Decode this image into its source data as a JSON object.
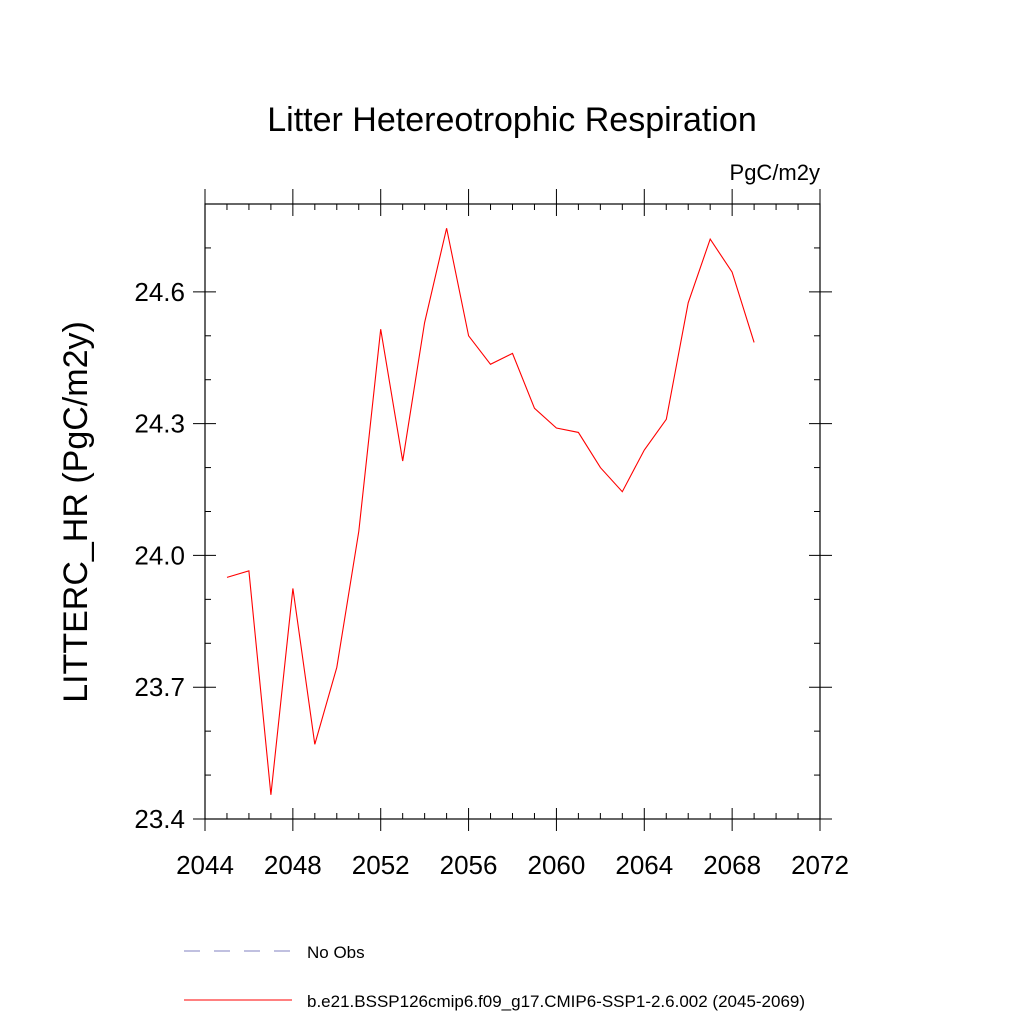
{
  "chart_data": {
    "type": "line",
    "title": "Litter Hetereotrophic Respiration",
    "units_label": "PgC/m2y",
    "ylabel": "LITTERC_HR  (PgC/m2y)",
    "xlabel": "",
    "xlim": [
      2044,
      2072
    ],
    "ylim": [
      23.4,
      24.8
    ],
    "x_ticks": [
      2044,
      2048,
      2052,
      2056,
      2060,
      2064,
      2068,
      2072
    ],
    "x_tick_labels": [
      "2044",
      "2048",
      "2052",
      "2056",
      "2060",
      "2064",
      "2068",
      "2072"
    ],
    "y_ticks": [
      23.4,
      23.7,
      24.0,
      24.3,
      24.6
    ],
    "y_tick_labels": [
      "23.4",
      "23.7",
      "24.0",
      "24.3",
      "24.6"
    ],
    "grid": false,
    "legend_position": "bottom",
    "series": [
      {
        "name": "b.e21.BSSP126cmip6.f09_g17.CMIP6-SSP1-2.6.002 (2045-2069)",
        "color": "#ff0000",
        "dash": "solid",
        "x": [
          2045,
          2046,
          2047,
          2048,
          2049,
          2050,
          2051,
          2052,
          2053,
          2054,
          2055,
          2056,
          2057,
          2058,
          2059,
          2060,
          2061,
          2062,
          2063,
          2064,
          2065,
          2066,
          2067,
          2068,
          2069
        ],
        "y": [
          23.95,
          23.965,
          23.455,
          23.925,
          23.57,
          23.745,
          24.055,
          24.515,
          24.215,
          24.53,
          24.745,
          24.5,
          24.435,
          24.46,
          24.335,
          24.29,
          24.28,
          24.2,
          24.145,
          24.24,
          24.31,
          24.575,
          24.72,
          24.645,
          24.485
        ]
      }
    ],
    "legend": [
      {
        "label": "No Obs",
        "color": "#8080c0",
        "dash": "dashed"
      },
      {
        "label": "b.e21.BSSP126cmip6.f09_g17.CMIP6-SSP1-2.6.002 (2045-2069)",
        "color": "#ff0000",
        "dash": "solid"
      }
    ]
  }
}
